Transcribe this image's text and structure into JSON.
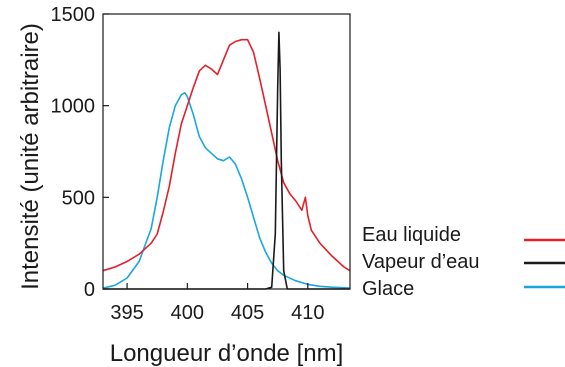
{
  "chart_data": {
    "type": "line",
    "xlabel": "Longueur d’onde [nm]",
    "ylabel": "Intensité (unité arbitraire)",
    "xlim": [
      393,
      413.5
    ],
    "ylim": [
      0,
      1500
    ],
    "xticks": [
      395,
      400,
      405,
      410
    ],
    "yticks": [
      0,
      500,
      1000,
      1500
    ],
    "legend_position": "right",
    "series": [
      {
        "name": "Eau liquide",
        "color": "#e3202a",
        "x": [
          393.0,
          394.0,
          395.0,
          396.0,
          397.0,
          397.5,
          398.0,
          398.5,
          399.0,
          399.5,
          400.0,
          400.5,
          401.0,
          401.5,
          402.0,
          402.5,
          403.0,
          403.5,
          404.0,
          404.5,
          405.0,
          405.5,
          406.0,
          406.5,
          407.0,
          407.5,
          408.0,
          408.5,
          409.0,
          409.5,
          409.8,
          410.0,
          410.3,
          411.0,
          412.0,
          413.0,
          413.5
        ],
        "y": [
          100,
          120,
          150,
          190,
          250,
          300,
          420,
          560,
          740,
          900,
          1000,
          1100,
          1190,
          1220,
          1200,
          1170,
          1250,
          1330,
          1350,
          1360,
          1360,
          1290,
          1150,
          1000,
          850,
          700,
          580,
          520,
          480,
          430,
          500,
          400,
          320,
          250,
          180,
          120,
          100
        ]
      },
      {
        "name": "Vapeur d’eau",
        "color": "#1a1a1a",
        "x": [
          393.0,
          406.5,
          407.0,
          407.3,
          407.5,
          407.6,
          407.7,
          407.8,
          408.0,
          408.3,
          413.5
        ],
        "y": [
          0,
          0,
          10,
          300,
          1100,
          1400,
          1200,
          700,
          100,
          0,
          0
        ]
      },
      {
        "name": "Glace",
        "color": "#1aa6e0",
        "x": [
          393.0,
          394.0,
          395.0,
          396.0,
          397.0,
          397.5,
          398.0,
          398.5,
          399.0,
          399.5,
          399.8,
          400.0,
          400.5,
          401.0,
          401.5,
          402.0,
          402.5,
          403.0,
          403.5,
          404.0,
          404.5,
          405.0,
          405.5,
          406.0,
          406.5,
          407.0,
          407.5,
          408.0,
          409.0,
          410.0,
          411.0,
          412.0,
          413.5
        ],
        "y": [
          5,
          20,
          60,
          150,
          330,
          500,
          700,
          880,
          1000,
          1060,
          1070,
          1050,
          950,
          830,
          770,
          740,
          710,
          700,
          720,
          680,
          600,
          500,
          390,
          280,
          200,
          140,
          100,
          75,
          45,
          25,
          15,
          10,
          5
        ]
      }
    ]
  }
}
